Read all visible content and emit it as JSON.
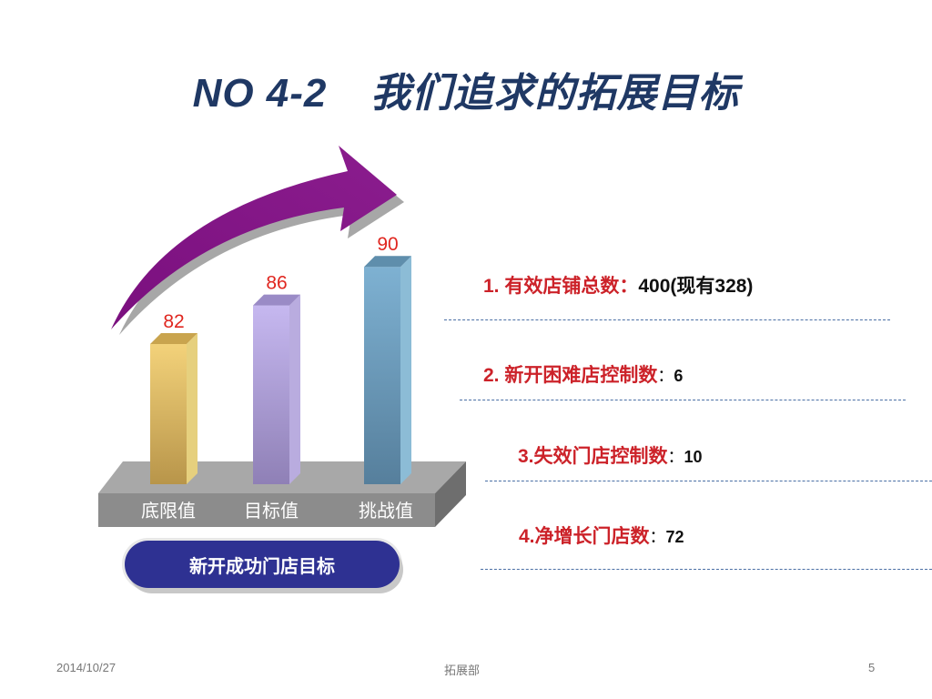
{
  "slide": {
    "title_prefix": "NO 4-2",
    "title_main": "我们追求的拓展目标",
    "legend_label": "新开成功门店目标",
    "footer": {
      "date": "2014/10/27",
      "department": "拓展部",
      "page": "5"
    }
  },
  "items": [
    {
      "label": "1. 有效店铺总数：",
      "sep": "",
      "value": "400(现有328)"
    },
    {
      "label": "2. 新开困难店控制数",
      "sep": "：",
      "value": "6"
    },
    {
      "label": "3.失效门店控制数",
      "sep": "：",
      "value": "10"
    },
    {
      "label": "4.净增长门店数",
      "sep": "：",
      "value": "72"
    }
  ],
  "chart_data": {
    "type": "bar",
    "categories": [
      "底限值",
      "目标值",
      "挑战值"
    ],
    "values": [
      82,
      86,
      90
    ],
    "data_labels": [
      "82",
      "86",
      "90"
    ],
    "bar_colors": [
      "#d8b45e",
      "#a99ad8",
      "#6f9fbf"
    ],
    "label_color": "#e0261f"
  }
}
